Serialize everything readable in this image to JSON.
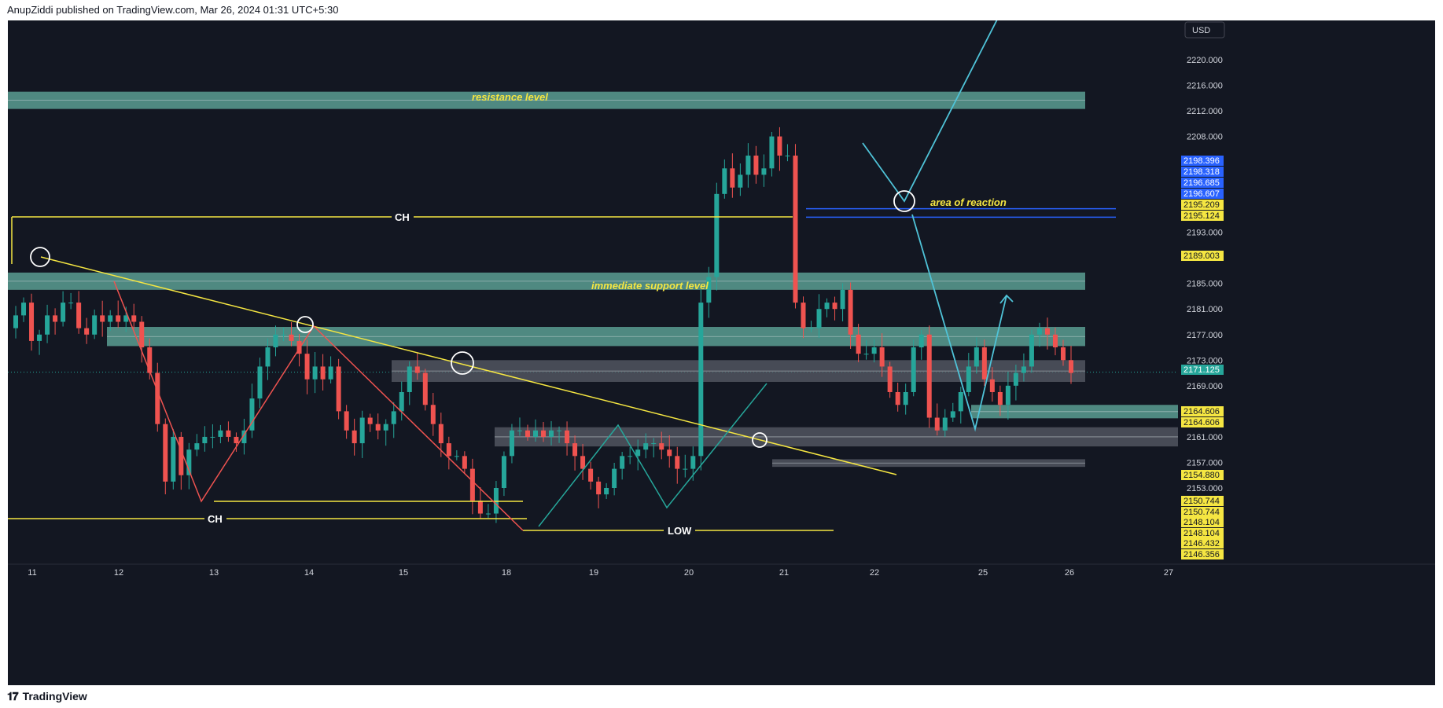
{
  "header": {
    "published": "AnupZiddi published on TradingView.com, Mar 26, 2024 01:31 UTC+5:30"
  },
  "footer": {
    "brand": "TradingView"
  },
  "currency_button": {
    "label": "USD"
  },
  "colors": {
    "bull": "#26a69a",
    "bear": "#ef5350",
    "zone_teal": "#5a9e92",
    "zone_gray": "#5a5e68",
    "yellow": "#f5e642",
    "cyan": "#4fc3d8",
    "blue": "#2962ff",
    "text": "#d1d4dc"
  },
  "chart_data": {
    "type": "candlestick",
    "symbol_hint": "",
    "y_axis_ticks": [
      "2220.000",
      "2216.000",
      "2212.000",
      "2208.000",
      "2193.000",
      "2185.000",
      "2181.000",
      "2177.000",
      "2173.000",
      "2169.000",
      "2161.000",
      "2157.000",
      "2153.000"
    ],
    "y_axis_plain": [
      2220,
      2216,
      2212,
      2208,
      2193,
      2185,
      2181,
      2177,
      2173,
      2169,
      2161,
      2157,
      2153
    ],
    "price_labels": [
      {
        "text": "2198.396",
        "value": 2198.396,
        "style": "blue"
      },
      {
        "text": "2198.318",
        "value": 2198.318,
        "style": "blue"
      },
      {
        "text": "2196.685",
        "value": 2196.685,
        "style": "blue"
      },
      {
        "text": "2196.607",
        "value": 2196.607,
        "style": "blue"
      },
      {
        "text": "2195.209",
        "value": 2195.209,
        "style": "yellow"
      },
      {
        "text": "2195.124",
        "value": 2195.124,
        "style": "yellow"
      },
      {
        "text": "2189.003",
        "value": 2189.003,
        "style": "yellow"
      },
      {
        "text": "2171.125",
        "value": 2171.125,
        "style": "teal"
      },
      {
        "text": "2164.606",
        "value": 2164.606,
        "style": "yellow"
      },
      {
        "text": "2164.606",
        "value": 2164.606,
        "style": "yellow"
      },
      {
        "text": "2154.880",
        "value": 2154.88,
        "style": "yellow"
      },
      {
        "text": "2150.744",
        "value": 2150.744,
        "style": "yellow"
      },
      {
        "text": "2150.744",
        "value": 2150.744,
        "style": "yellow"
      },
      {
        "text": "2148.104",
        "value": 2148.104,
        "style": "yellow"
      },
      {
        "text": "2148.104",
        "value": 2148.104,
        "style": "yellow"
      },
      {
        "text": "2146.432",
        "value": 2146.432,
        "style": "yellow"
      },
      {
        "text": "2146.356",
        "value": 2146.356,
        "style": "yellow"
      }
    ],
    "x_axis_ticks": [
      "11",
      "12",
      "13",
      "14",
      "15",
      "18",
      "19",
      "20",
      "21",
      "22",
      "25",
      "26",
      "27"
    ],
    "annotations": {
      "resistance": "resistance  level",
      "support": "immediate  support level",
      "reaction": "area  of reaction",
      "ch_top": "CH",
      "ch_bottom": "CH",
      "low": "LOW"
    },
    "zones": [
      {
        "kind": "teal",
        "from": "11",
        "to": "26",
        "y_top": 2215.0,
        "y_bottom": 2212.3
      },
      {
        "kind": "teal",
        "from": "11",
        "to": "26",
        "y_top": 2186.7,
        "y_bottom": 2184.0
      },
      {
        "kind": "teal",
        "from": "12",
        "to": "26",
        "y_top": 2178.2,
        "y_bottom": 2175.2
      },
      {
        "kind": "gray",
        "from": "15",
        "to": "26",
        "y_top": 2173.0,
        "y_bottom": 2169.6
      },
      {
        "kind": "teal",
        "from": "25",
        "to": "27",
        "y_top": 2166.0,
        "y_bottom": 2163.9
      },
      {
        "kind": "gray",
        "from": "18",
        "to": "27",
        "y_top": 2162.5,
        "y_bottom": 2159.5
      },
      {
        "kind": "gray",
        "from": "21",
        "to": "26",
        "y_top": 2157.5,
        "y_bottom": 2156.3
      }
    ],
    "reaction_lines": [
      2196.685,
      2195.124
    ],
    "current_price": 2171.125,
    "ohlc_path": [
      2178,
      2180,
      2182,
      2176,
      2177,
      2180,
      2179,
      2182,
      2182,
      2178,
      2177,
      2180,
      2179,
      2180,
      2179,
      2180,
      2179,
      2175,
      2171,
      2163,
      2154,
      2161,
      2155,
      2159,
      2160,
      2161,
      2161,
      2162,
      2161,
      2160,
      2162,
      2167,
      2172,
      2175,
      2177,
      2177,
      2176,
      2174,
      2170,
      2172,
      2170,
      2172,
      2165,
      2162,
      2160,
      2164,
      2163,
      2162,
      2163,
      2165,
      2168,
      2172,
      2171,
      2166,
      2163,
      2160,
      2158,
      2158,
      2156,
      2151,
      2149,
      2149,
      2153,
      2158,
      2162,
      2162,
      2161,
      2162,
      2161,
      2162,
      2162,
      2160,
      2158,
      2156,
      2154,
      2152,
      2153,
      2156,
      2158,
      2158,
      2159,
      2160,
      2160,
      2159,
      2158,
      2156,
      2156,
      2158,
      2182,
      2186,
      2199,
      2203,
      2200,
      2202,
      2205,
      2202,
      2203,
      2208,
      2205,
      2205,
      2182,
      2178,
      2178,
      2181,
      2182,
      2181,
      2184,
      2177,
      2174,
      2174,
      2175,
      2172,
      2168,
      2166,
      2168,
      2175,
      2177,
      2164,
      2162,
      2164,
      2165,
      2168,
      2172,
      2175,
      2170,
      2168,
      2166,
      2169,
      2171,
      2172,
      2177,
      2178,
      2177,
      2175,
      2173,
      2171
    ]
  }
}
